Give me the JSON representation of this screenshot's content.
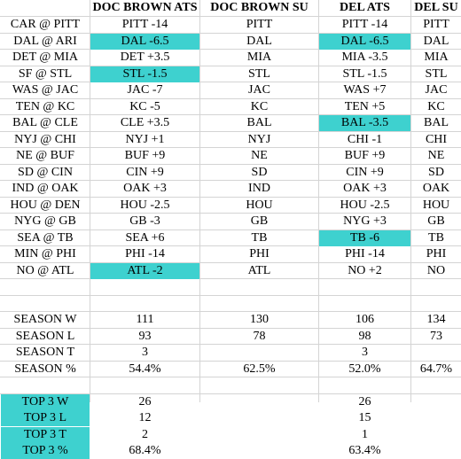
{
  "colors": {
    "highlight": "#3ed1cf",
    "gridline": "#d4d4d4"
  },
  "headers": [
    "",
    "DOC BROWN ATS",
    "DOC BROWN SU",
    "DEL ATS",
    "DEL SU"
  ],
  "games": [
    {
      "matchup": "CAR @ PITT",
      "doc_ats": "PITT -14",
      "doc_su": "PITT",
      "del_ats": "PITT -14",
      "del_su": "PITT"
    },
    {
      "matchup": "DAL @ ARI",
      "doc_ats": "DAL -6.5",
      "doc_su": "DAL",
      "del_ats": "DAL -6.5",
      "del_su": "DAL"
    },
    {
      "matchup": "DET @ MIA",
      "doc_ats": "DET +3.5",
      "doc_su": "MIA",
      "del_ats": "MIA -3.5",
      "del_su": "MIA"
    },
    {
      "matchup": "SF @ STL",
      "doc_ats": "STL -1.5",
      "doc_su": "STL",
      "del_ats": "STL -1.5",
      "del_su": "STL"
    },
    {
      "matchup": "WAS @ JAC",
      "doc_ats": "JAC -7",
      "doc_su": "JAC",
      "del_ats": "WAS +7",
      "del_su": "JAC"
    },
    {
      "matchup": "TEN @ KC",
      "doc_ats": "KC -5",
      "doc_su": "KC",
      "del_ats": "TEN +5",
      "del_su": "KC"
    },
    {
      "matchup": "BAL @ CLE",
      "doc_ats": "CLE +3.5",
      "doc_su": "BAL",
      "del_ats": "BAL -3.5",
      "del_su": "BAL"
    },
    {
      "matchup": "NYJ @ CHI",
      "doc_ats": "NYJ +1",
      "doc_su": "NYJ",
      "del_ats": "CHI -1",
      "del_su": "CHI"
    },
    {
      "matchup": "NE @ BUF",
      "doc_ats": "BUF +9",
      "doc_su": "NE",
      "del_ats": "BUF +9",
      "del_su": "NE"
    },
    {
      "matchup": "SD @ CIN",
      "doc_ats": "CIN +9",
      "doc_su": "SD",
      "del_ats": "CIN +9",
      "del_su": "SD"
    },
    {
      "matchup": "IND @ OAK",
      "doc_ats": "OAK +3",
      "doc_su": "IND",
      "del_ats": "OAK +3",
      "del_su": "OAK"
    },
    {
      "matchup": "HOU @ DEN",
      "doc_ats": "HOU -2.5",
      "doc_su": "HOU",
      "del_ats": "HOU -2.5",
      "del_su": "HOU"
    },
    {
      "matchup": "NYG @ GB",
      "doc_ats": "GB -3",
      "doc_su": "GB",
      "del_ats": "NYG +3",
      "del_su": "GB"
    },
    {
      "matchup": "SEA @ TB",
      "doc_ats": "SEA +6",
      "doc_su": "TB",
      "del_ats": "TB -6",
      "del_su": "TB"
    },
    {
      "matchup": "MIN @ PHI",
      "doc_ats": "PHI -14",
      "doc_su": "PHI",
      "del_ats": "PHI -14",
      "del_su": "PHI"
    },
    {
      "matchup": "NO @ ATL",
      "doc_ats": "ATL -2",
      "doc_su": "ATL",
      "del_ats": "NO +2",
      "del_su": "NO"
    }
  ],
  "season": [
    {
      "label": "SEASON W",
      "doc_ats": "111",
      "doc_su": "130",
      "del_ats": "106",
      "del_su": "134"
    },
    {
      "label": "SEASON L",
      "doc_ats": "93",
      "doc_su": "78",
      "del_ats": "98",
      "del_su": "73"
    },
    {
      "label": "SEASON T",
      "doc_ats": "3",
      "doc_su": "",
      "del_ats": "3",
      "del_su": ""
    },
    {
      "label": "SEASON %",
      "doc_ats": "54.4%",
      "doc_su": "62.5%",
      "del_ats": "52.0%",
      "del_su": "64.7%"
    }
  ],
  "top3": [
    {
      "label": "TOP 3 W",
      "doc_ats": "26",
      "doc_su": "",
      "del_ats": "26",
      "del_su": ""
    },
    {
      "label": "TOP 3 L",
      "doc_ats": "12",
      "doc_su": "",
      "del_ats": "15",
      "del_su": ""
    },
    {
      "label": "TOP 3 T",
      "doc_ats": "2",
      "doc_su": "",
      "del_ats": "1",
      "del_su": ""
    },
    {
      "label": "TOP 3 %",
      "doc_ats": "68.4%",
      "doc_su": "",
      "del_ats": "63.4%",
      "del_su": ""
    }
  ],
  "highlighted": {
    "games": [
      [
        "DAL @ ARI",
        "doc_ats"
      ],
      [
        "DAL @ ARI",
        "del_ats"
      ],
      [
        "SF @ STL",
        "doc_ats"
      ],
      [
        "BAL @ CLE",
        "del_ats"
      ],
      [
        "SEA @ TB",
        "del_ats"
      ],
      [
        "NO @ ATL",
        "doc_ats"
      ]
    ],
    "top3_labels": true
  }
}
